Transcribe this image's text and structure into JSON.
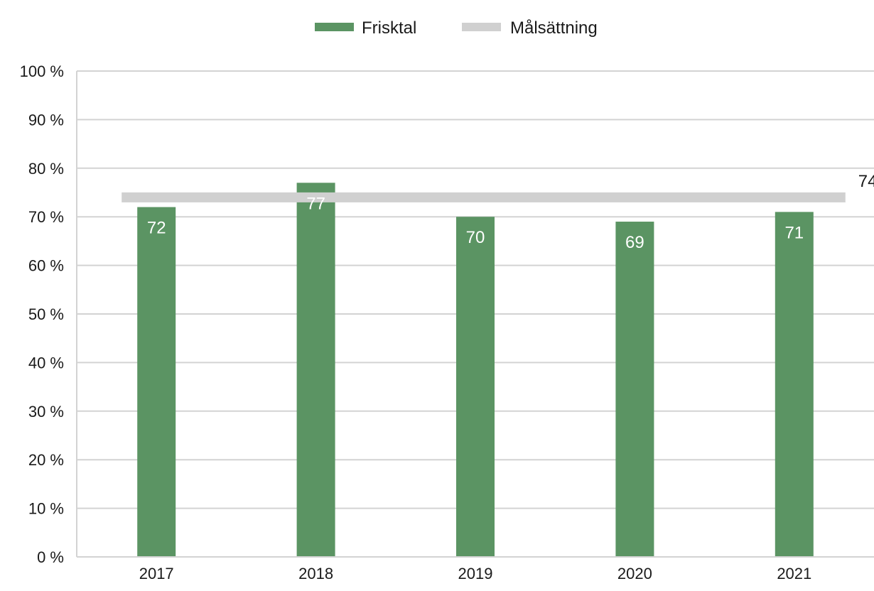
{
  "chart_data": {
    "type": "bar",
    "title": "",
    "xlabel": "",
    "ylabel": "",
    "categories": [
      "2017",
      "2018",
      "2019",
      "2020",
      "2021"
    ],
    "series": [
      {
        "name": "Frisktal",
        "type": "bar",
        "values": [
          72,
          77,
          70,
          69,
          71
        ],
        "color": "#5b9463"
      }
    ],
    "target": {
      "name": "Målsättning",
      "value": 74,
      "label": "74",
      "color": "#d0d0d0"
    },
    "ylim": [
      0,
      100
    ],
    "yticks": [
      0,
      10,
      20,
      30,
      40,
      50,
      60,
      70,
      80,
      90,
      100
    ],
    "ytick_labels": [
      "0 %",
      "10 %",
      "20 %",
      "30 %",
      "40 %",
      "50 %",
      "60 %",
      "70 %",
      "80 %",
      "90 %",
      "100 %"
    ],
    "grid": true,
    "legend": {
      "position": "top-center",
      "entries": [
        {
          "label": "Frisktal",
          "color": "#5b9463"
        },
        {
          "label": "Målsättning",
          "color": "#d0d0d0"
        }
      ]
    },
    "bar_label_color": "#ffffff",
    "grid_color": "#d3d3d3",
    "text_color": "#1a1a1a"
  }
}
